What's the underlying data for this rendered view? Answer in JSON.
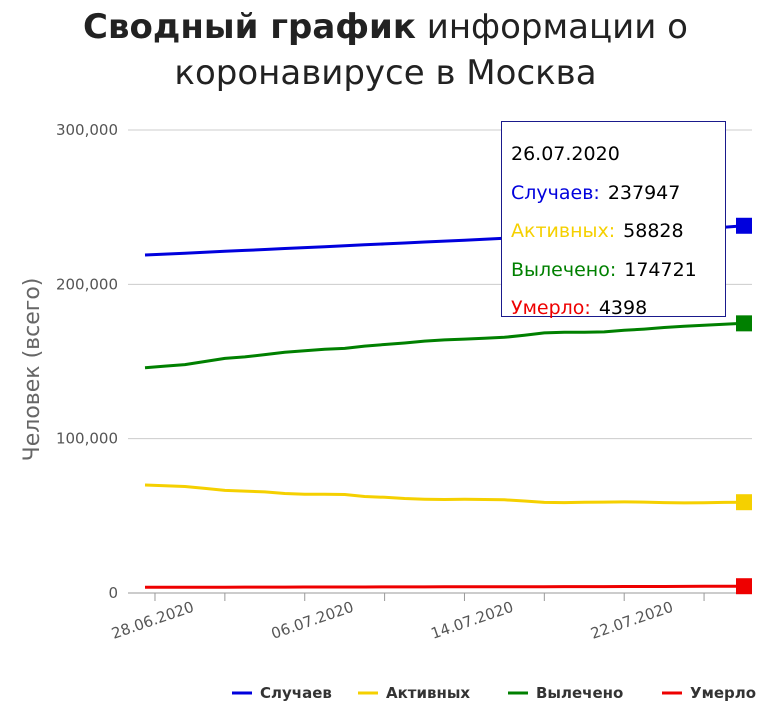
{
  "title": {
    "bold": "Сводный график",
    "rest_line1": " информации о",
    "line2": "коронавирусе в Москва"
  },
  "colors": {
    "cases": "#0000dd",
    "active": "#f5d000",
    "recovered": "#008000",
    "deaths": "#ee0000",
    "grid": "#cccccc",
    "axis": "#999999"
  },
  "chart_data": {
    "type": "line",
    "title": "Сводный график информации о коронавирусе в Москва",
    "ylabel": "Человек (всего)",
    "xlabel": "",
    "ylim": [
      0,
      300000
    ],
    "yticks": [
      "0",
      "100,000",
      "200,000",
      "300,000"
    ],
    "xticks": [
      "28.06.2020",
      "06.07.2020",
      "14.07.2020",
      "22.07.2020"
    ],
    "grid": "horizontal",
    "legend_position": "bottom",
    "x": [
      "26.06.2020",
      "27.06.2020",
      "28.06.2020",
      "29.06.2020",
      "30.06.2020",
      "01.07.2020",
      "02.07.2020",
      "03.07.2020",
      "04.07.2020",
      "05.07.2020",
      "06.07.2020",
      "07.07.2020",
      "08.07.2020",
      "09.07.2020",
      "10.07.2020",
      "11.07.2020",
      "12.07.2020",
      "13.07.2020",
      "14.07.2020",
      "15.07.2020",
      "16.07.2020",
      "17.07.2020",
      "18.07.2020",
      "19.07.2020",
      "20.07.2020",
      "21.07.2020",
      "22.07.2020",
      "23.07.2020",
      "24.07.2020",
      "25.07.2020",
      "26.07.2020"
    ],
    "series": [
      {
        "name": "Случаев",
        "key": "cases",
        "values": [
          219000,
          219600,
          220200,
          220800,
          221400,
          222000,
          222600,
          223200,
          223800,
          224400,
          225000,
          225600,
          226200,
          226800,
          227400,
          228000,
          228600,
          229200,
          229800,
          230400,
          231000,
          231600,
          232200,
          232800,
          233400,
          234000,
          234700,
          235400,
          236200,
          237000,
          237947
        ]
      },
      {
        "name": "Активных",
        "key": "active",
        "values": [
          70000,
          69500,
          69000,
          67800,
          66500,
          66000,
          65500,
          64500,
          64000,
          64000,
          63800,
          62500,
          62000,
          61200,
          60800,
          60600,
          60700,
          60600,
          60400,
          59600,
          58700,
          58600,
          58800,
          58900,
          59000,
          58900,
          58600,
          58400,
          58500,
          58700,
          58828
        ]
      },
      {
        "name": "Вылечено",
        "key": "recovered",
        "values": [
          146000,
          147000,
          148000,
          150000,
          152000,
          153000,
          154500,
          156000,
          157000,
          158000,
          158500,
          160000,
          161000,
          162000,
          163200,
          164000,
          164500,
          165000,
          165700,
          167000,
          168500,
          169000,
          169000,
          169200,
          170200,
          171000,
          172000,
          172800,
          173500,
          174100,
          174721
        ]
      },
      {
        "name": "Умерло",
        "key": "deaths",
        "values": [
          3700,
          3720,
          3740,
          3760,
          3780,
          3800,
          3820,
          3840,
          3860,
          3880,
          3900,
          3920,
          3940,
          3960,
          3980,
          4000,
          4020,
          4040,
          4060,
          4080,
          4100,
          4120,
          4140,
          4160,
          4180,
          4200,
          4240,
          4280,
          4320,
          4360,
          4398
        ]
      }
    ]
  },
  "tooltip": {
    "date": "26.07.2020",
    "rows": [
      {
        "key": "cases",
        "label": "Случаев:",
        "value": "237947"
      },
      {
        "key": "active",
        "label": "Активных:",
        "value": "58828"
      },
      {
        "key": "recovered",
        "label": "Вылечено:",
        "value": "174721"
      },
      {
        "key": "deaths",
        "label": "Умерло:",
        "value": "4398"
      }
    ]
  }
}
